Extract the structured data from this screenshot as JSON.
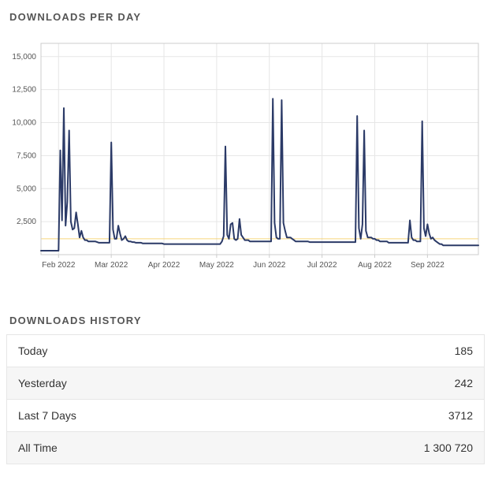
{
  "downloads_chart": {
    "section_title": "DOWNLOADS PER DAY",
    "type": "line",
    "background_color": "#ffffff",
    "plot_border_color": "#cccccc",
    "grid_color": "#e6e6e6",
    "baseline_color": "#f5cb5c",
    "baseline_value": 1200,
    "line_color": "#2b3a67",
    "line_width": 2,
    "axis_label_color": "#555555",
    "axis_label_fontsize": 10,
    "ylim": [
      0,
      16000
    ],
    "ytick_step": 2500,
    "yticks": [
      2500,
      5000,
      7500,
      10000,
      12500,
      15000
    ],
    "x_months": [
      "Feb 2022",
      "Mar 2022",
      "Apr 2022",
      "May 2022",
      "Jun 2022",
      "Jul 2022",
      "Aug 2022",
      "Sep 2022"
    ],
    "x_days_total": 250,
    "x_month_day_starts": [
      10,
      40,
      70,
      100,
      130,
      160,
      190,
      220
    ],
    "values": [
      300,
      300,
      300,
      300,
      300,
      300,
      300,
      300,
      300,
      300,
      300,
      7900,
      2600,
      11100,
      2200,
      4000,
      9400,
      2500,
      1900,
      2000,
      3200,
      2300,
      1300,
      1800,
      1300,
      1100,
      1100,
      1000,
      1000,
      1000,
      1000,
      1000,
      950,
      900,
      900,
      900,
      900,
      900,
      900,
      900,
      8500,
      1900,
      1200,
      1200,
      2200,
      1600,
      1100,
      1200,
      1400,
      1100,
      1000,
      1000,
      950,
      950,
      900,
      900,
      900,
      900,
      850,
      850,
      850,
      850,
      850,
      850,
      850,
      850,
      850,
      850,
      850,
      850,
      800,
      800,
      800,
      800,
      800,
      800,
      800,
      800,
      800,
      800,
      800,
      800,
      800,
      800,
      800,
      800,
      800,
      800,
      800,
      800,
      800,
      800,
      800,
      800,
      800,
      800,
      800,
      800,
      800,
      800,
      800,
      800,
      800,
      1000,
      1400,
      8200,
      1500,
      1200,
      2300,
      2400,
      1200,
      1100,
      1200,
      2700,
      1500,
      1300,
      1100,
      1100,
      1100,
      1000,
      1000,
      1000,
      1000,
      1000,
      1000,
      1000,
      1000,
      1000,
      1000,
      1000,
      1000,
      1000,
      11800,
      2400,
      1300,
      1200,
      1200,
      11700,
      2400,
      1800,
      1300,
      1300,
      1300,
      1200,
      1100,
      1000,
      1000,
      1000,
      1000,
      1000,
      1000,
      1000,
      1000,
      950,
      950,
      950,
      950,
      950,
      950,
      950,
      950,
      950,
      950,
      950,
      950,
      950,
      950,
      950,
      950,
      950,
      950,
      950,
      950,
      950,
      950,
      950,
      950,
      950,
      950,
      950,
      10500,
      2000,
      1200,
      2300,
      9400,
      1800,
      1300,
      1300,
      1300,
      1200,
      1200,
      1100,
      1100,
      1000,
      1000,
      1000,
      1000,
      1000,
      900,
      900,
      900,
      900,
      900,
      900,
      900,
      900,
      900,
      900,
      900,
      900,
      2600,
      1300,
      1100,
      1100,
      1000,
      1000,
      1000,
      10100,
      2000,
      1400,
      2300,
      1600,
      1200,
      1300,
      1100,
      1000,
      900,
      800,
      800,
      700,
      700,
      700,
      700,
      700,
      700,
      700,
      700,
      700,
      700,
      700,
      700,
      700,
      700,
      700,
      700,
      700,
      700,
      700,
      700,
      700
    ]
  },
  "history": {
    "section_title": "DOWNLOADS HISTORY",
    "rows": [
      {
        "label": "Today",
        "value": "185"
      },
      {
        "label": "Yesterday",
        "value": "242"
      },
      {
        "label": "Last 7 Days",
        "value": "3712"
      },
      {
        "label": "All Time",
        "value": "1 300 720"
      }
    ]
  }
}
